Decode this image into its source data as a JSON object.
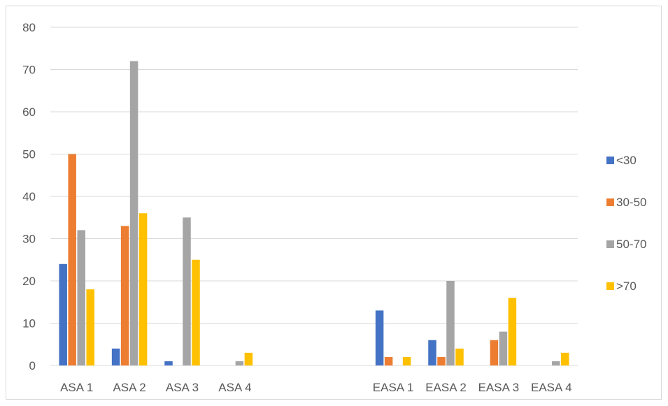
{
  "chart_data": {
    "type": "bar",
    "categories": [
      "ASA 1",
      "ASA 2",
      "ASA 3",
      "ASA 4",
      "",
      "",
      "EASA 1",
      "EASA 2",
      "EASA 3",
      "EASA 4"
    ],
    "series": [
      {
        "name": "<30",
        "color": "#4472c4",
        "values": [
          24,
          4,
          1,
          0,
          null,
          null,
          13,
          6,
          0,
          0
        ]
      },
      {
        "name": "30-50",
        "color": "#ed7d31",
        "values": [
          50,
          33,
          0,
          0,
          null,
          null,
          2,
          2,
          6,
          0
        ]
      },
      {
        "name": "50-70",
        "color": "#a5a5a5",
        "values": [
          32,
          72,
          35,
          1,
          null,
          null,
          0,
          20,
          8,
          1
        ]
      },
      {
        "name": ">70",
        "color": "#ffc000",
        "values": [
          18,
          36,
          25,
          3,
          null,
          null,
          2,
          4,
          16,
          3
        ]
      }
    ],
    "ylim": [
      0,
      80
    ],
    "yticks": [
      0,
      10,
      20,
      30,
      40,
      50,
      60,
      70,
      80
    ],
    "grid": true,
    "legend": "right"
  }
}
